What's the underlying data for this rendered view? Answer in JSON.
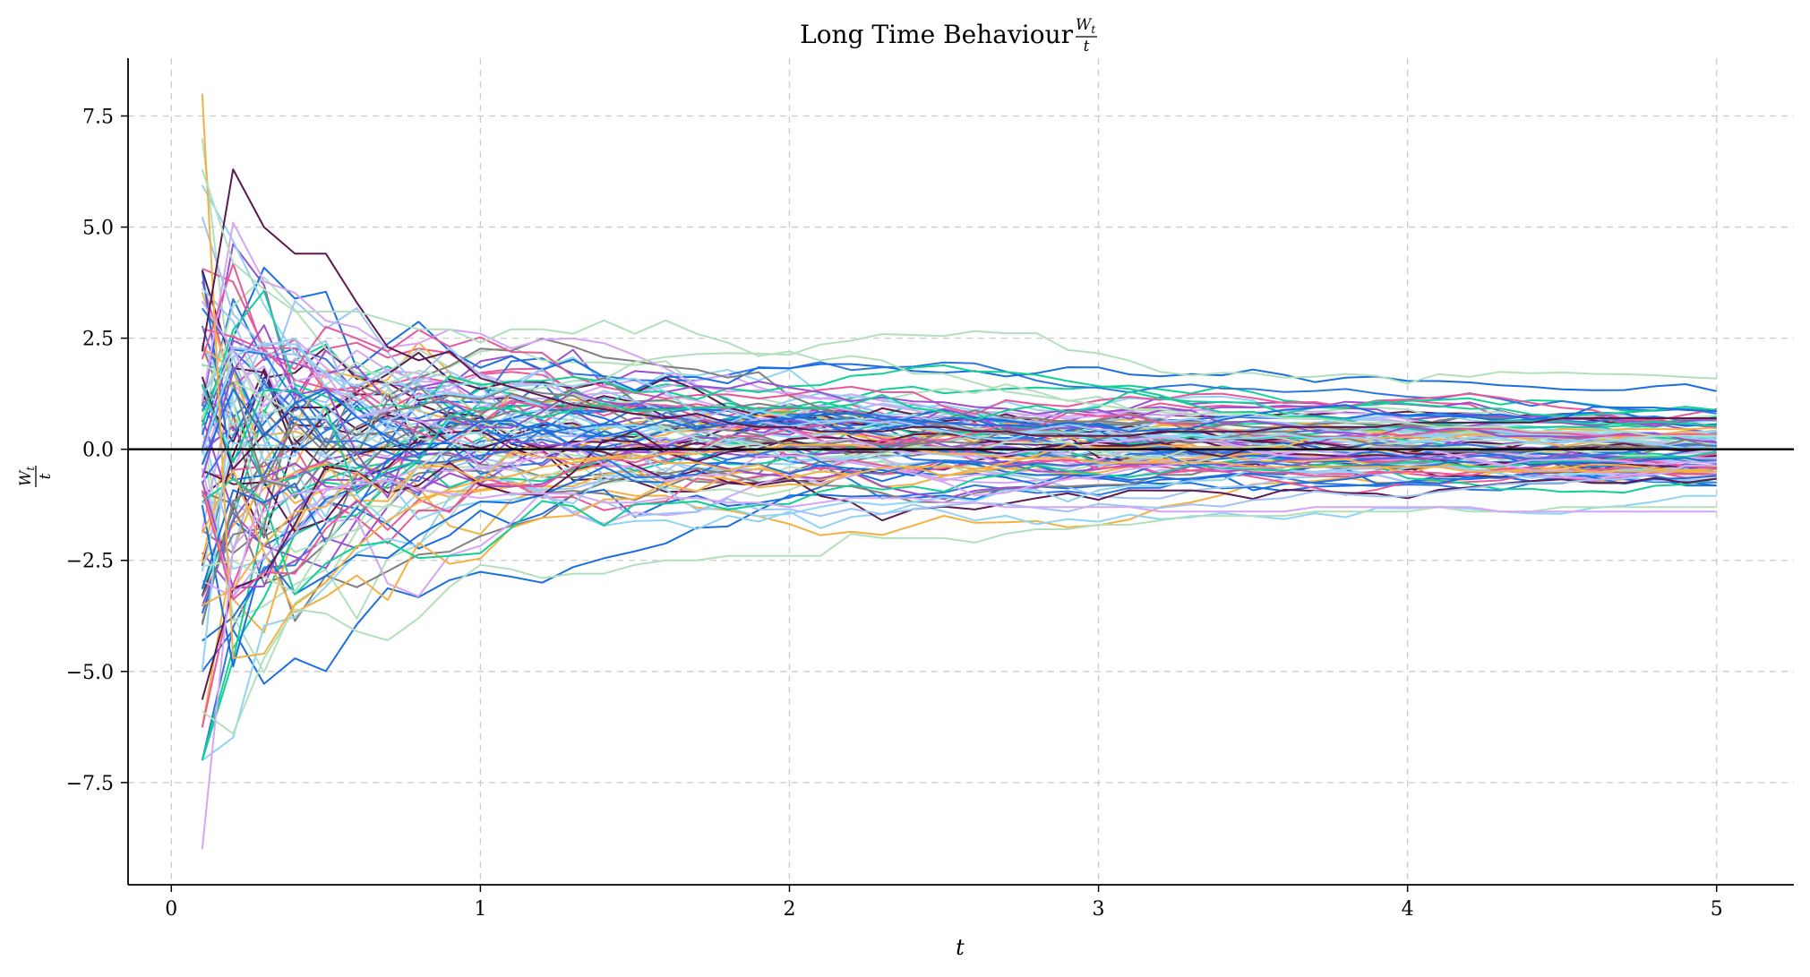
{
  "chart_data": {
    "type": "line",
    "title": "Long Time Behaviour",
    "title_fraction": {
      "numerator": "W",
      "numerator_sub": "t",
      "denominator": "t"
    },
    "xlabel": "t",
    "ylabel_fraction": {
      "numerator": "W",
      "numerator_sub": "t",
      "denominator": "t"
    },
    "xlim": [
      -0.14,
      5.25
    ],
    "ylim": [
      -9.8,
      8.8
    ],
    "xticks": [
      0,
      1,
      2,
      3,
      4,
      5
    ],
    "xtick_labels": [
      "0",
      "1",
      "2",
      "3",
      "4",
      "5"
    ],
    "yticks": [
      7.5,
      5.0,
      2.5,
      0.0,
      -2.5,
      -5.0,
      -7.5
    ],
    "ytick_labels": [
      "7.5",
      "5.0",
      "2.5",
      "0.0",
      "−2.5",
      "−5.0",
      "−7.5"
    ],
    "grid": true,
    "reference_line_y": 0,
    "t_start": 0.1,
    "t_end": 5.0,
    "n_points": 50,
    "n_paths": 100,
    "palette": [
      "#5c1a4e",
      "#2e77e0",
      "#f5b043",
      "#b2e0bc",
      "#9b4fd1",
      "#e8589b",
      "#808080",
      "#12cf96",
      "#8fd4f5",
      "#d4a6f5",
      "#1a6fe0",
      "#a0c4f5"
    ],
    "highlight_paths": [
      {
        "color": "#f5b043",
        "values": [
          8.0,
          -4.7,
          -4.6,
          -3.5,
          -3.0,
          -2.2,
          -1.6,
          -1.2,
          -0.9,
          -0.7,
          -0.6,
          -0.4,
          -0.3,
          -0.2,
          -0.2,
          -0.1,
          -0.1,
          0.0,
          0.0,
          0.1,
          0.1,
          0.1,
          0.0,
          0.0,
          -0.1,
          -0.1,
          -0.2,
          -0.2,
          -0.2,
          -0.3,
          -0.3,
          -0.3,
          -0.3,
          -0.3,
          -0.4,
          -0.4,
          -0.4,
          -0.4,
          -0.4,
          -0.4,
          -0.4,
          -0.5,
          -0.5,
          -0.5,
          -0.5,
          -0.5,
          -0.5,
          -0.5,
          -0.5,
          -0.5
        ]
      },
      {
        "color": "#5c1a4e",
        "values": [
          2.2,
          6.3,
          5.0,
          4.4,
          4.4,
          3.3,
          2.3,
          2.0,
          2.2,
          1.6,
          1.4,
          1.2,
          1.0,
          0.9,
          0.8,
          0.7,
          0.8,
          0.6,
          0.5,
          0.5,
          0.4,
          0.4,
          0.4,
          0.5,
          0.5,
          0.4,
          0.4,
          0.3,
          0.3,
          0.3,
          0.3,
          0.4,
          0.4,
          0.4,
          0.4,
          0.5,
          0.5,
          0.5,
          0.5,
          0.6,
          0.6,
          0.6,
          0.6,
          0.6,
          0.7,
          0.7,
          0.7,
          0.7,
          0.7,
          0.7
        ]
      },
      {
        "color": "#b2e0bc",
        "values": [
          6.3,
          4.2,
          3.6,
          3.1,
          3.1,
          3.1,
          2.9,
          2.7,
          2.7,
          2.4,
          2.7,
          2.7,
          2.6,
          2.9,
          2.6,
          2.9,
          2.6,
          2.4,
          2.1,
          2.2,
          2.0,
          2.1,
          2.0,
          1.7,
          1.7,
          1.5,
          1.3,
          1.2,
          1.1,
          1.0,
          0.9,
          0.9,
          0.8,
          0.8,
          0.8,
          0.7,
          0.7,
          0.6,
          0.6,
          0.6,
          0.5,
          0.5,
          0.5,
          0.4,
          0.4,
          0.4,
          0.4,
          0.3,
          0.3,
          0.3
        ]
      },
      {
        "color": "#b2e0bc",
        "values": [
          -5.9,
          -6.4,
          -4.7,
          -3.6,
          -3.7,
          -4.1,
          -4.3,
          -3.8,
          -3.1,
          -2.6,
          -2.7,
          -2.9,
          -2.8,
          -2.8,
          -2.6,
          -2.5,
          -2.5,
          -2.4,
          -2.4,
          -2.4,
          -2.4,
          -1.9,
          -2.0,
          -2.0,
          -2.0,
          -2.1,
          -1.9,
          -1.8,
          -1.8,
          -1.7,
          -1.7,
          -1.6,
          -1.5,
          -1.5,
          -1.5,
          -1.5,
          -1.4,
          -1.4,
          -1.4,
          -1.4,
          -1.3,
          -1.4,
          -1.4,
          -1.4,
          -1.3,
          -1.3,
          -1.3,
          -1.3,
          -1.3,
          -1.3
        ]
      },
      {
        "color": "#d4a6f5",
        "values": [
          -9.0,
          -2.2,
          -1.4,
          -1.0,
          -0.9,
          -0.8,
          -0.7,
          -0.9,
          -1.0,
          -1.1,
          -1.0,
          -1.0,
          -1.0,
          -1.2,
          -1.2,
          -1.1,
          -1.1,
          -1.2,
          -1.2,
          -1.3,
          -1.2,
          -1.1,
          -1.1,
          -1.1,
          -1.2,
          -1.2,
          -1.3,
          -1.3,
          -1.3,
          -1.3,
          -1.3,
          -1.4,
          -1.4,
          -1.4,
          -1.4,
          -1.4,
          -1.3,
          -1.3,
          -1.3,
          -1.3,
          -1.3,
          -1.3,
          -1.4,
          -1.4,
          -1.4,
          -1.4,
          -1.4,
          -1.4,
          -1.4,
          -1.4
        ]
      }
    ]
  }
}
